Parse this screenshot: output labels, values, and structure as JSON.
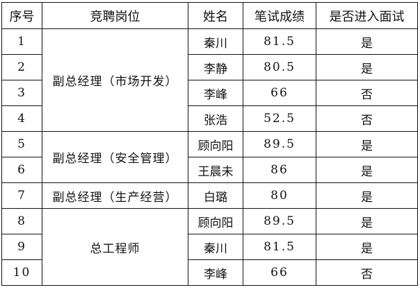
{
  "headers": [
    "序号",
    "竞聘岗位",
    "姓名",
    "笔试成绩",
    "是否进入面试"
  ],
  "positions": [
    "副总经理（市场开发）",
    "副总经理（安全管理）",
    "副总经理（生产经营）",
    "总工程师"
  ],
  "rows": [
    {
      "no": "1",
      "name": "秦川",
      "score": "81.5",
      "interview": "是"
    },
    {
      "no": "2",
      "name": "李静",
      "score": "80.5",
      "interview": "是"
    },
    {
      "no": "3",
      "name": "李峰",
      "score": "66",
      "interview": "否"
    },
    {
      "no": "4",
      "name": "张浩",
      "score": "52.5",
      "interview": "否"
    },
    {
      "no": "5",
      "name": "顾向阳",
      "score": "89.5",
      "interview": "是"
    },
    {
      "no": "6",
      "name": "王晨未",
      "score": "86",
      "interview": "是"
    },
    {
      "no": "7",
      "name": "白璐",
      "score": "80",
      "interview": "是"
    },
    {
      "no": "8",
      "name": "顾向阳",
      "score": "89.5",
      "interview": "是"
    },
    {
      "no": "9",
      "name": "秦川",
      "score": "81.5",
      "interview": "是"
    },
    {
      "no": "10",
      "name": "李峰",
      "score": "66",
      "interview": "否"
    }
  ]
}
